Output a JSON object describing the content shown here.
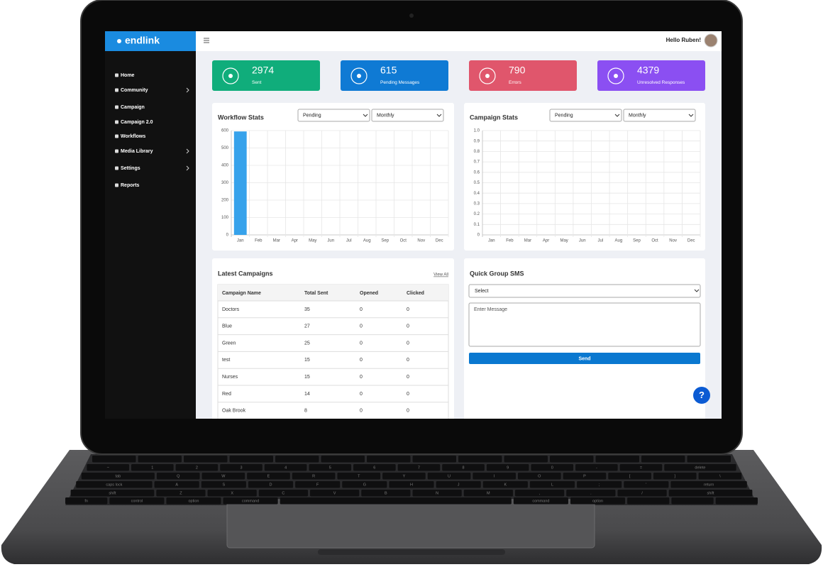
{
  "brand": "endlink",
  "greeting": "Hello Ruben!",
  "nav": [
    {
      "label": "Home",
      "expandable": false
    },
    {
      "label": "Community",
      "expandable": true
    },
    {
      "label": "Campaign",
      "expandable": false
    },
    {
      "label": "Campaign 2.0",
      "expandable": false
    },
    {
      "label": "Workflows",
      "expandable": false
    },
    {
      "label": "Media Library",
      "expandable": true
    },
    {
      "label": "Settings",
      "expandable": true
    },
    {
      "label": "Reports",
      "expandable": false
    }
  ],
  "stats": [
    {
      "value": 2974,
      "label": "Sent",
      "color": "#10ad7b"
    },
    {
      "value": 615,
      "label": "Pending Messages",
      "color": "#0f7ad4"
    },
    {
      "value": 790,
      "label": "Errors",
      "color": "#e0566c"
    },
    {
      "value": 4379,
      "label": "Unresolved Responses",
      "color": "#8b4ff2"
    }
  ],
  "chart_data": [
    {
      "type": "bar",
      "title": "Workflow Stats",
      "filters": [
        "Pending",
        "Monthly"
      ],
      "categories": [
        "Jan",
        "Feb",
        "Mar",
        "Apr",
        "May",
        "Jun",
        "Jul",
        "Aug",
        "Sep",
        "Oct",
        "Nov",
        "Dec"
      ],
      "values": [
        595,
        0,
        0,
        0,
        0,
        0,
        0,
        0,
        0,
        0,
        0,
        0
      ],
      "color": "#36a2eb",
      "ylim": [
        0,
        600
      ],
      "yticks": [
        0,
        100,
        200,
        300,
        400,
        500,
        600
      ],
      "grid": true
    },
    {
      "type": "bar",
      "title": "Campaign Stats",
      "filters": [
        "Pending",
        "Monthly"
      ],
      "categories": [
        "Jan",
        "Feb",
        "Mar",
        "Apr",
        "May",
        "Jun",
        "Jul",
        "Aug",
        "Sep",
        "Oct",
        "Nov",
        "Dec"
      ],
      "values": [
        0,
        0,
        0,
        0,
        0,
        0,
        0,
        0,
        0,
        0,
        0,
        0
      ],
      "color": "#36a2eb",
      "ylim": [
        0,
        1
      ],
      "yticks": [
        0,
        0.1,
        0.2,
        0.3,
        0.4,
        0.5,
        0.6,
        0.7,
        0.8,
        0.9,
        {
          "value": 1,
          "label": "1.0"
        }
      ],
      "grid": true
    }
  ],
  "latest_campaigns": {
    "title": "Latest Campaigns",
    "link": "View All",
    "columns": [
      "Campaign Name",
      "Total Sent",
      "Opened",
      "Clicked"
    ],
    "rows": [
      [
        "Doctors",
        35,
        0,
        0
      ],
      [
        "Blue",
        27,
        0,
        0
      ],
      [
        "Green",
        25,
        0,
        0
      ],
      [
        "test",
        15,
        0,
        0
      ],
      [
        "Nurses",
        15,
        0,
        0
      ],
      [
        "Red",
        14,
        0,
        0
      ],
      [
        "Oak Brook",
        8,
        0,
        0
      ]
    ]
  },
  "quick_sms": {
    "title": "Quick Group SMS",
    "select": "Select",
    "placeholder": "Enter Message",
    "button": "Send"
  },
  "help": "?",
  "keyboard": {
    "rows": [
      [
        "~",
        "1",
        "2",
        "3",
        "4",
        "5",
        "6",
        "7",
        "8",
        "9",
        "0",
        "-",
        "=",
        "delete"
      ],
      [
        "tab",
        "Q",
        "W",
        "E",
        "R",
        "T",
        "Y",
        "U",
        "I",
        "O",
        "P",
        "[",
        "]",
        "\\"
      ],
      [
        "caps lock",
        "A",
        "S",
        "D",
        "F",
        "G",
        "H",
        "J",
        "K",
        "L",
        ";",
        "'",
        "return"
      ],
      [
        "shift",
        "Z",
        "X",
        "C",
        "V",
        "B",
        "N",
        "M",
        ",",
        ".",
        "/",
        "shift"
      ]
    ],
    "bottom_left": [
      "fn",
      "control",
      "option",
      "command"
    ],
    "bottom_right": [
      "command",
      "option"
    ]
  }
}
